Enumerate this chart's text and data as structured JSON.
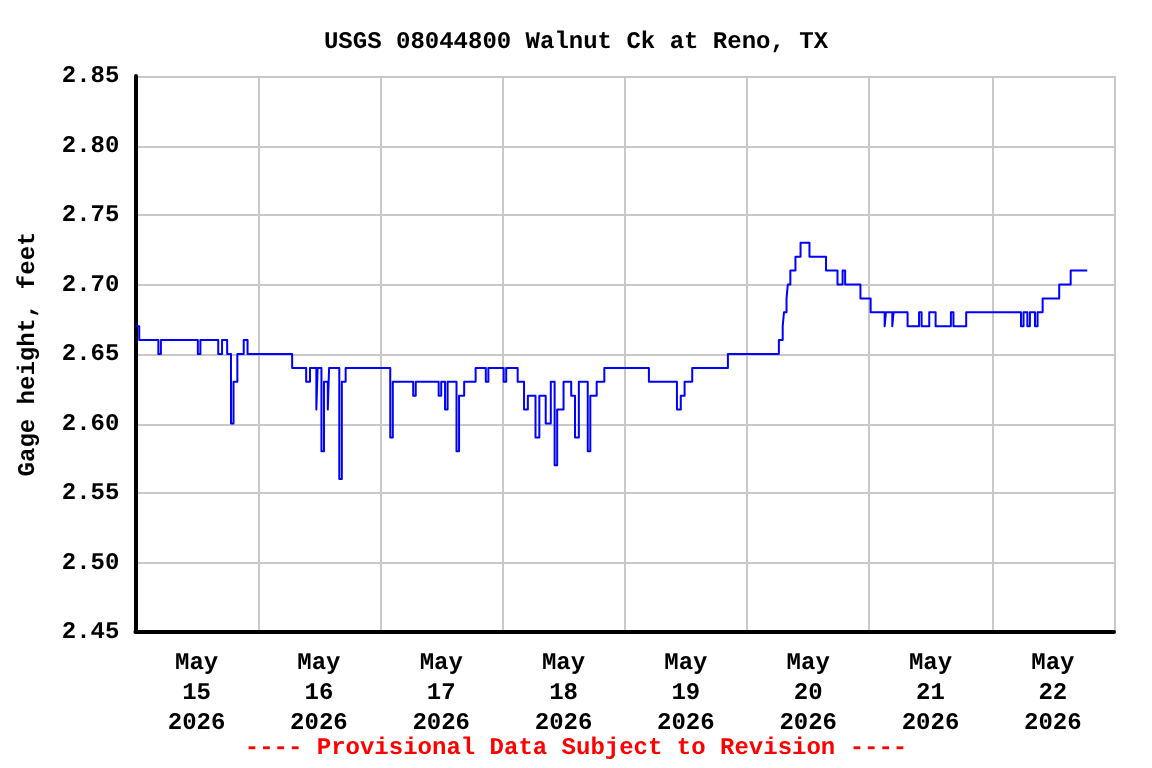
{
  "chart_data": {
    "type": "step",
    "title": "USGS 08044800 Walnut Ck at Reno, TX",
    "ylabel": "Gage height, feet",
    "annotations": [
      "---- Provisional Data Subject to Revision ----"
    ],
    "xlim": [
      "2026-05-15T00:00",
      "2026-05-23T00:00"
    ],
    "xticks": [
      {
        "value": "2026-05-15T12:00",
        "label": "May\n15\n2026"
      },
      {
        "value": "2026-05-16T00:00",
        "label": null
      },
      {
        "value": "2026-05-16T12:00",
        "label": "May\n16\n2026"
      },
      {
        "value": "2026-05-17T00:00",
        "label": null
      },
      {
        "value": "2026-05-17T12:00",
        "label": "May\n17\n2026"
      },
      {
        "value": "2026-05-18T00:00",
        "label": null
      },
      {
        "value": "2026-05-18T12:00",
        "label": "May\n18\n2026"
      },
      {
        "value": "2026-05-19T00:00",
        "label": null
      },
      {
        "value": "2026-05-19T12:00",
        "label": "May\n19\n2026"
      },
      {
        "value": "2026-05-20T00:00",
        "label": null
      },
      {
        "value": "2026-05-20T12:00",
        "label": "May\n20\n2026"
      },
      {
        "value": "2026-05-21T00:00",
        "label": null
      },
      {
        "value": "2026-05-21T12:00",
        "label": "May\n21\n2026"
      },
      {
        "value": "2026-05-22T00:00",
        "label": null
      },
      {
        "value": "2026-05-22T12:00",
        "label": "May\n22\n2026"
      },
      {
        "value": "2026-05-23T00:00",
        "label": null
      }
    ],
    "ylim": [
      2.45,
      2.85
    ],
    "yticks": [
      2.45,
      {
        "value": 2.5,
        "label": "2.50"
      },
      2.55,
      {
        "value": 2.6,
        "label": "2.60"
      },
      2.65,
      {
        "value": 2.7,
        "label": "2.70"
      },
      2.75,
      {
        "value": 2.8,
        "label": "2.80"
      },
      2.85
    ],
    "grid": true,
    "marker": "none",
    "line_style": "solid",
    "series": [
      {
        "color": "#0000ff",
        "x": [
          "2026-05-15T00:00",
          "2026-05-15T00:45",
          "2026-05-15T04:30",
          "2026-05-15T05:00",
          "2026-05-15T12:15",
          "2026-05-15T12:45",
          "2026-05-15T16:15",
          "2026-05-15T17:00",
          "2026-05-15T18:00",
          "2026-05-15T18:45",
          "2026-05-15T19:15",
          "2026-05-15T20:00",
          "2026-05-15T21:15",
          "2026-05-15T22:00",
          "2026-05-16T06:45",
          "2026-05-16T09:30",
          "2026-05-16T10:15",
          "2026-05-16T11:30",
          "2026-05-16T11:45",
          "2026-05-16T12:30",
          "2026-05-16T13:00",
          "2026-05-16T13:45",
          "2026-05-16T14:00",
          "2026-05-16T16:00",
          "2026-05-16T16:30",
          "2026-05-16T17:15",
          "2026-05-17T02:00",
          "2026-05-17T02:30",
          "2026-05-17T06:30",
          "2026-05-17T07:00",
          "2026-05-17T11:30",
          "2026-05-17T12:00",
          "2026-05-17T12:45",
          "2026-05-17T13:15",
          "2026-05-17T15:00",
          "2026-05-17T15:30",
          "2026-05-17T16:30",
          "2026-05-17T18:45",
          "2026-05-17T20:45",
          "2026-05-17T21:15",
          "2026-05-18T00:15",
          "2026-05-18T00:45",
          "2026-05-18T03:00",
          "2026-05-18T04:15",
          "2026-05-18T05:00",
          "2026-05-18T06:30",
          "2026-05-18T07:15",
          "2026-05-18T08:30",
          "2026-05-18T09:30",
          "2026-05-18T10:15",
          "2026-05-18T10:45",
          "2026-05-18T12:00",
          "2026-05-18T13:30",
          "2026-05-18T14:15",
          "2026-05-18T15:00",
          "2026-05-18T16:45",
          "2026-05-18T17:15",
          "2026-05-18T18:30",
          "2026-05-18T20:00",
          "2026-05-19T04:45",
          "2026-05-19T10:15",
          "2026-05-19T11:00",
          "2026-05-19T11:45",
          "2026-05-19T13:15",
          "2026-05-19T20:15",
          "2026-05-20T06:15",
          "2026-05-20T07:00",
          "2026-05-20T07:15",
          "2026-05-20T07:45",
          "2026-05-20T08:00",
          "2026-05-20T08:30",
          "2026-05-20T09:30",
          "2026-05-20T10:30",
          "2026-05-20T12:15",
          "2026-05-20T15:30",
          "2026-05-20T17:45",
          "2026-05-20T18:45",
          "2026-05-20T19:15",
          "2026-05-20T22:15",
          "2026-05-21T00:15",
          "2026-05-21T03:00",
          "2026-05-21T03:15",
          "2026-05-21T04:30",
          "2026-05-21T04:45",
          "2026-05-21T07:30",
          "2026-05-21T09:45",
          "2026-05-21T10:15",
          "2026-05-21T11:45",
          "2026-05-21T13:00",
          "2026-05-21T16:00",
          "2026-05-21T16:30",
          "2026-05-21T19:00",
          "2026-05-22T05:45",
          "2026-05-22T06:15",
          "2026-05-22T07:00",
          "2026-05-22T07:30",
          "2026-05-22T08:30",
          "2026-05-22T09:00",
          "2026-05-22T10:00",
          "2026-05-22T13:15",
          "2026-05-22T15:30",
          "2026-05-22T18:45"
        ],
        "values": [
          2.67,
          2.66,
          2.65,
          2.66,
          2.65,
          2.66,
          2.65,
          2.66,
          2.65,
          2.6,
          2.63,
          2.65,
          2.66,
          2.65,
          2.64,
          2.63,
          2.64,
          2.61,
          2.64,
          2.58,
          2.63,
          2.61,
          2.64,
          2.56,
          2.63,
          2.64,
          2.59,
          2.63,
          2.62,
          2.63,
          2.62,
          2.63,
          2.61,
          2.63,
          2.58,
          2.62,
          2.63,
          2.64,
          2.63,
          2.64,
          2.63,
          2.64,
          2.63,
          2.61,
          2.62,
          2.59,
          2.62,
          2.6,
          2.63,
          2.57,
          2.61,
          2.63,
          2.62,
          2.59,
          2.63,
          2.58,
          2.62,
          2.63,
          2.64,
          2.63,
          2.61,
          2.62,
          2.63,
          2.64,
          2.65,
          2.66,
          2.67,
          2.68,
          2.69,
          2.7,
          2.71,
          2.72,
          2.73,
          2.72,
          2.71,
          2.7,
          2.71,
          2.7,
          2.69,
          2.68,
          2.67,
          2.68,
          2.67,
          2.68,
          2.67,
          2.68,
          2.67,
          2.68,
          2.67,
          2.68,
          2.67,
          2.68,
          2.67,
          2.68,
          2.67,
          2.68,
          2.67,
          2.68,
          2.69,
          2.7,
          2.71,
          2.71
        ]
      }
    ]
  }
}
